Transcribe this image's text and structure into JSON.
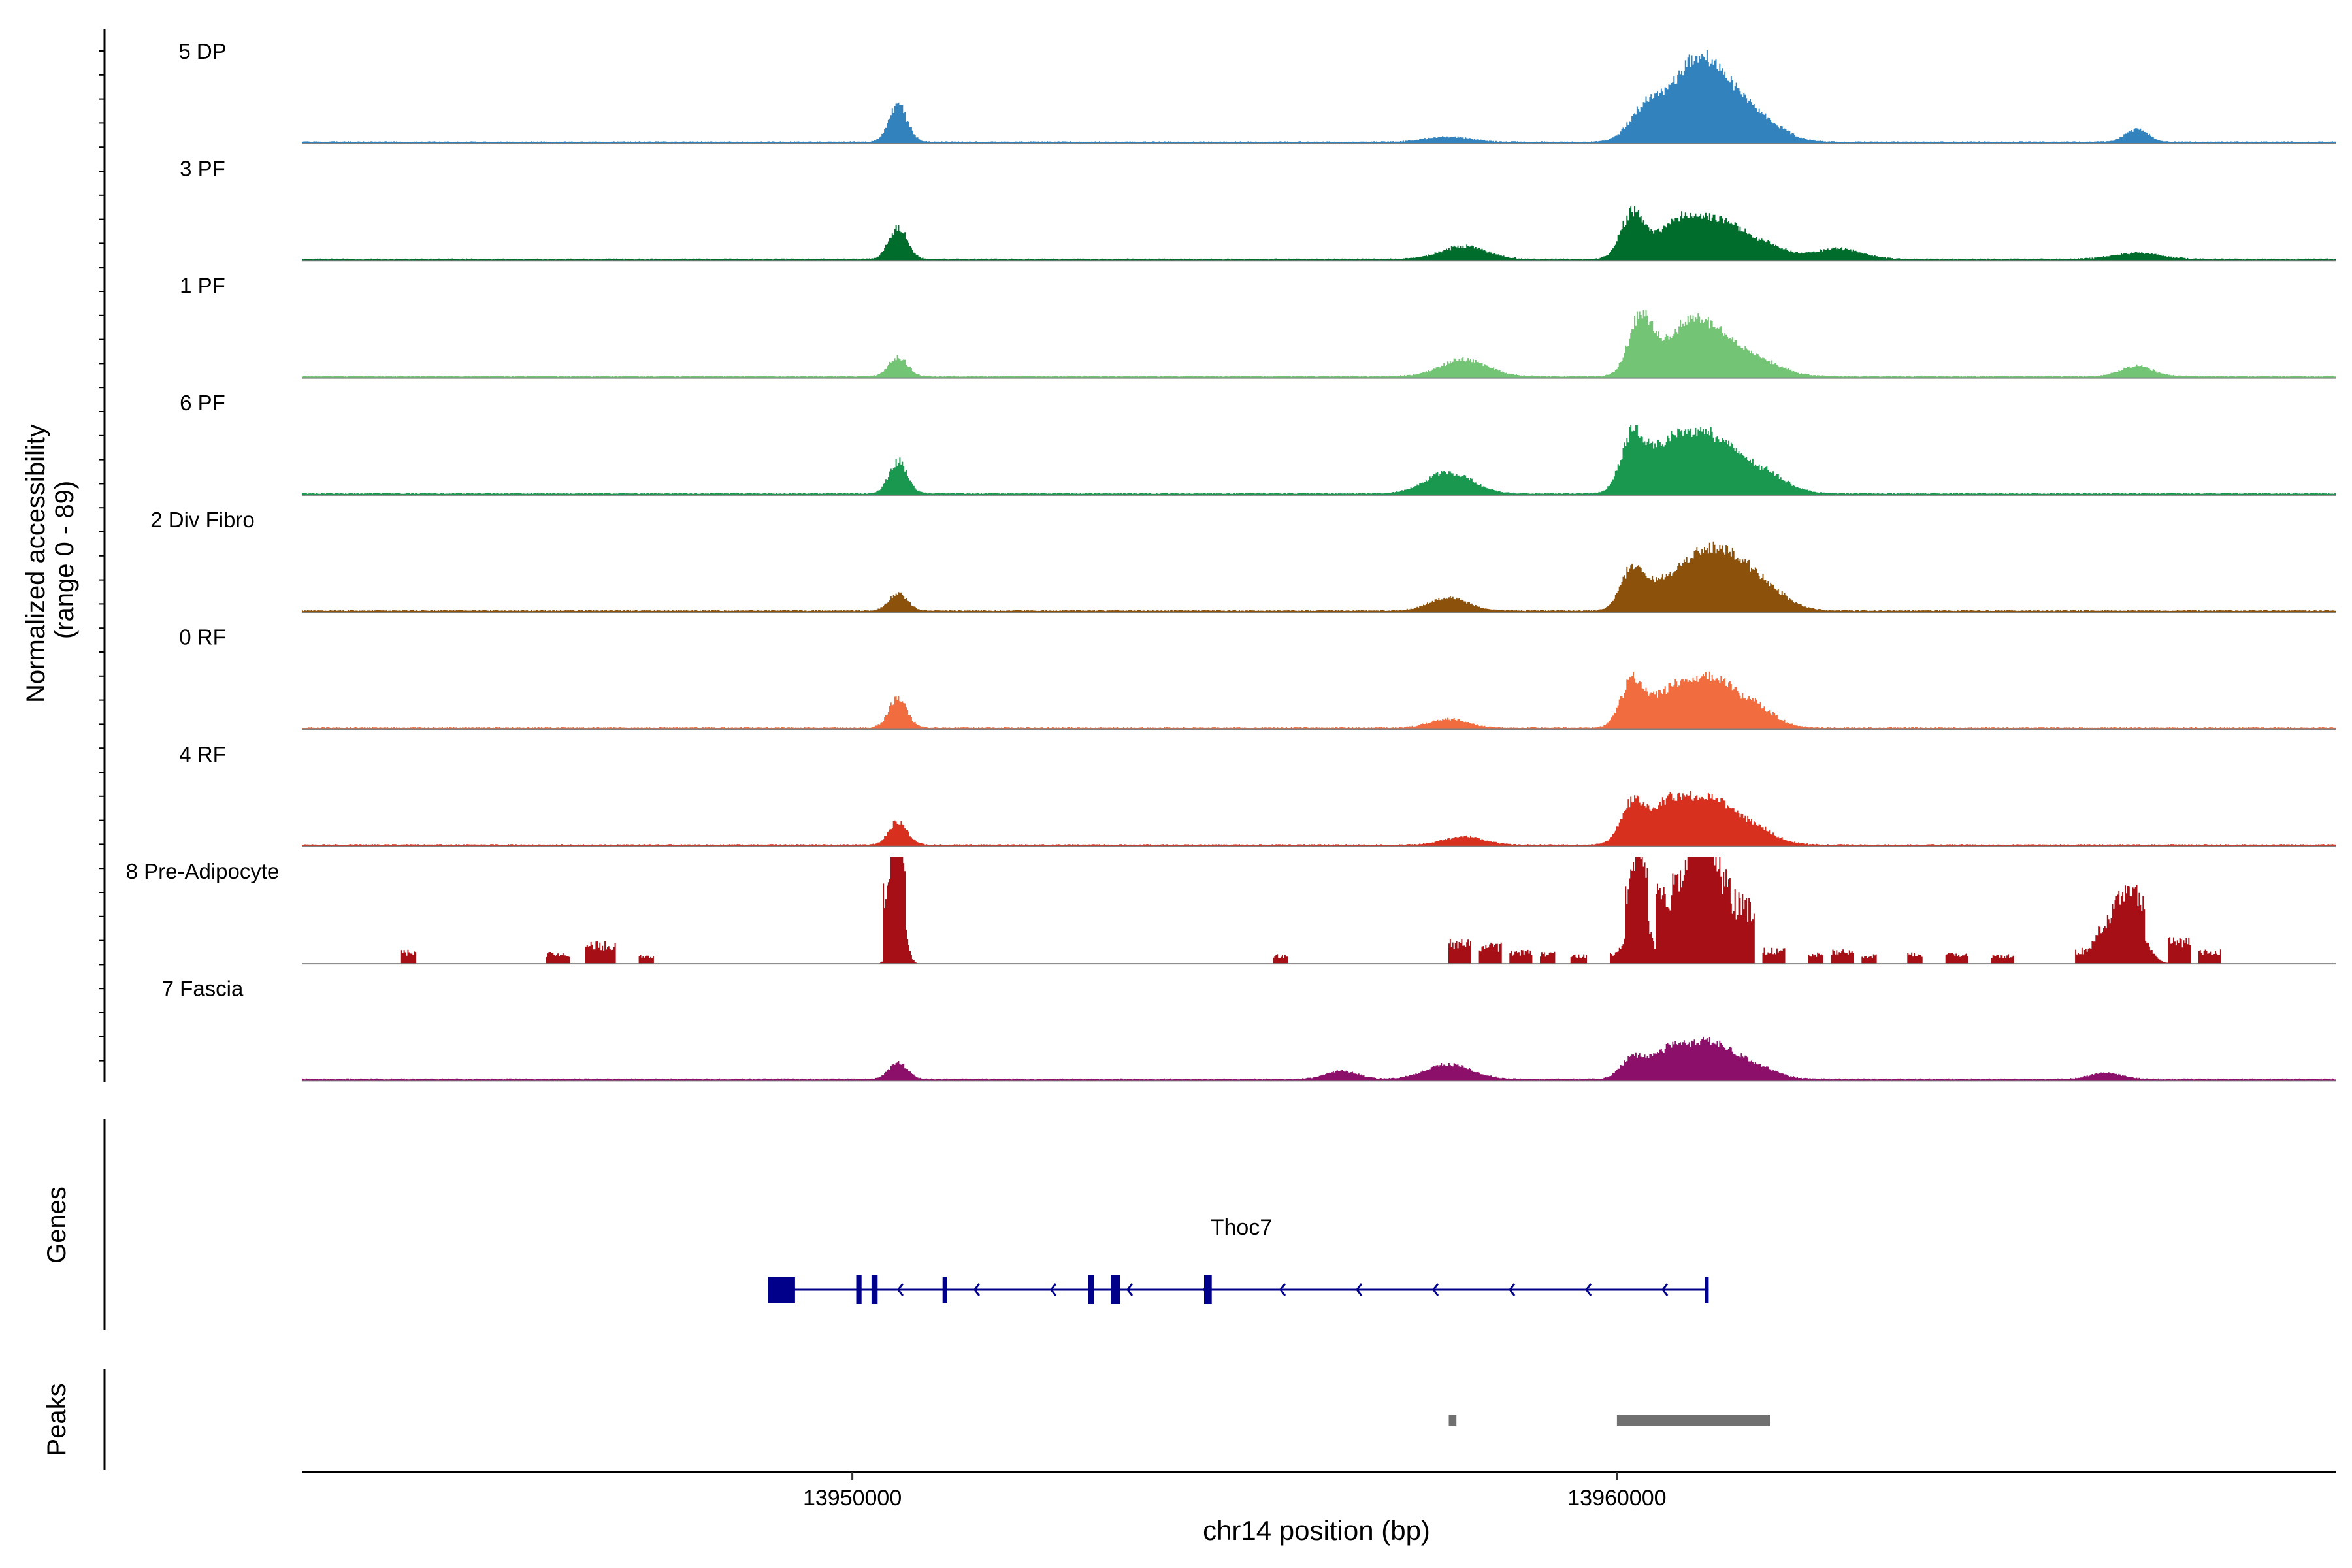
{
  "chart_data": {
    "type": "area",
    "title": "",
    "xlabel": "chr14 position (bp)",
    "ylabel_line1": "Normalized accessibility",
    "ylabel_line2": "(range 0 - 89)",
    "ylim": [
      0,
      89
    ],
    "xlim": [
      13942800,
      13969400
    ],
    "x_ticks": [
      13950000,
      13960000
    ],
    "x_tick_labels": [
      "13950000",
      "13960000"
    ],
    "tracks": [
      {
        "name": "5 DP",
        "color": "#3182bd",
        "regions": [
          [
            13942800,
            13969400,
            2
          ]
        ],
        "peaks": [
          [
            13950600,
            34,
            120
          ],
          [
            13957800,
            5,
            300
          ],
          [
            13960400,
            34,
            220
          ],
          [
            13960900,
            48,
            250
          ],
          [
            13961200,
            40,
            250
          ],
          [
            13961500,
            28,
            250
          ],
          [
            13961900,
            18,
            300
          ],
          [
            13966800,
            12,
            150
          ]
        ]
      },
      {
        "name": "3 PF",
        "color": "#006d2c",
        "regions": [
          [
            13942800,
            13969400,
            2
          ]
        ],
        "peaks": [
          [
            13950600,
            30,
            120
          ],
          [
            13958000,
            12,
            300
          ],
          [
            13960200,
            42,
            150
          ],
          [
            13960700,
            24,
            250
          ],
          [
            13961000,
            22,
            250
          ],
          [
            13961400,
            28,
            250
          ],
          [
            13961900,
            14,
            300
          ],
          [
            13962900,
            10,
            300
          ],
          [
            13966800,
            6,
            300
          ]
        ]
      },
      {
        "name": "1 PF",
        "color": "#74c476",
        "regions": [
          [
            13942800,
            13969400,
            2
          ]
        ],
        "peaks": [
          [
            13950600,
            18,
            120
          ],
          [
            13958000,
            16,
            300
          ],
          [
            13960300,
            52,
            150
          ],
          [
            13960700,
            26,
            250
          ],
          [
            13961100,
            42,
            250
          ],
          [
            13961500,
            18,
            250
          ],
          [
            13961900,
            12,
            300
          ],
          [
            13966800,
            10,
            200
          ]
        ]
      },
      {
        "name": "6 PF",
        "color": "#1a9850",
        "regions": [
          [
            13942800,
            13969400,
            2
          ]
        ],
        "peaks": [
          [
            13950600,
            30,
            120
          ],
          [
            13957800,
            20,
            300
          ],
          [
            13960200,
            50,
            150
          ],
          [
            13960600,
            36,
            250
          ],
          [
            13961000,
            40,
            250
          ],
          [
            13961400,
            34,
            250
          ],
          [
            13961900,
            20,
            300
          ]
        ]
      },
      {
        "name": "2 Div Fibro",
        "color": "#8c510a",
        "regions": [
          [
            13942800,
            13969400,
            2
          ]
        ],
        "peaks": [
          [
            13950600,
            16,
            120
          ],
          [
            13957800,
            12,
            250
          ],
          [
            13960200,
            36,
            150
          ],
          [
            13960600,
            24,
            250
          ],
          [
            13961100,
            44,
            250
          ],
          [
            13961500,
            34,
            250
          ],
          [
            13961900,
            22,
            300
          ]
        ]
      },
      {
        "name": "0 RF",
        "color": "#f16d3f",
        "regions": [
          [
            13942800,
            13969400,
            2
          ]
        ],
        "peaks": [
          [
            13950600,
            28,
            120
          ],
          [
            13957800,
            8,
            250
          ],
          [
            13960200,
            42,
            150
          ],
          [
            13960700,
            34,
            250
          ],
          [
            13961200,
            38,
            250
          ],
          [
            13961700,
            24,
            300
          ]
        ]
      },
      {
        "name": "4 RF",
        "color": "#d7301f",
        "regions": [
          [
            13942800,
            13969400,
            2
          ]
        ],
        "peaks": [
          [
            13950600,
            22,
            120
          ],
          [
            13958000,
            8,
            250
          ],
          [
            13960200,
            38,
            150
          ],
          [
            13960700,
            40,
            250
          ],
          [
            13961200,
            36,
            250
          ],
          [
            13961700,
            20,
            300
          ]
        ]
      },
      {
        "name": "8 Pre-Adipocyte",
        "color": "#a50f15",
        "regions": [
          [
            13944100,
            13944300,
            12
          ],
          [
            13946000,
            13946300,
            10
          ],
          [
            13946500,
            13946900,
            20
          ],
          [
            13947200,
            13947400,
            8
          ],
          [
            13950400,
            13950700,
            70
          ],
          [
            13955500,
            13955700,
            8
          ],
          [
            13957800,
            13958100,
            22
          ],
          [
            13958200,
            13958500,
            18
          ],
          [
            13958600,
            13958900,
            12
          ],
          [
            13959000,
            13959200,
            10
          ],
          [
            13959400,
            13959600,
            8
          ],
          [
            13959900,
            13960200,
            10
          ],
          [
            13960100,
            13960400,
            52
          ],
          [
            13960500,
            13961500,
            70
          ],
          [
            13961500,
            13961800,
            60
          ],
          [
            13961900,
            13962200,
            14
          ],
          [
            13962500,
            13962700,
            10
          ],
          [
            13962800,
            13963100,
            12
          ],
          [
            13963200,
            13963400,
            8
          ],
          [
            13963800,
            13964000,
            10
          ],
          [
            13964300,
            13964600,
            10
          ],
          [
            13964900,
            13965200,
            8
          ],
          [
            13966000,
            13966200,
            14
          ],
          [
            13966200,
            13966900,
            30
          ],
          [
            13967200,
            13967500,
            22
          ],
          [
            13967600,
            13967900,
            12
          ]
        ],
        "peaks": [
          [
            13961100,
            90,
            160
          ],
          [
            13950600,
            78,
            80
          ],
          [
            13966700,
            46,
            180
          ],
          [
            13960300,
            58,
            120
          ]
        ]
      },
      {
        "name": "7 Fascia",
        "color": "#8c0f6a",
        "regions": [
          [
            13942800,
            13969400,
            2
          ]
        ],
        "peaks": [
          [
            13950600,
            16,
            120
          ],
          [
            13956400,
            8,
            200
          ],
          [
            13957800,
            14,
            300
          ],
          [
            13960200,
            18,
            150
          ],
          [
            13960700,
            28,
            250
          ],
          [
            13961200,
            28,
            250
          ],
          [
            13961700,
            16,
            300
          ],
          [
            13966400,
            6,
            200
          ]
        ]
      }
    ],
    "gene": {
      "name": "Thoc7",
      "strand": "-",
      "start": 13948900,
      "end": 13961200,
      "exons": [
        [
          13948900,
          13949250
        ],
        [
          13950050,
          13950120
        ],
        [
          13950250,
          13950330
        ],
        [
          13951180,
          13951240
        ],
        [
          13953080,
          13953160
        ],
        [
          13953380,
          13953500
        ],
        [
          13954600,
          13954700
        ],
        [
          13961150,
          13961200
        ]
      ]
    },
    "peaks_track": [
      [
        13957800,
        13957900
      ],
      [
        13960000,
        13962000
      ]
    ],
    "panel_labels": {
      "genes": "Genes",
      "peaks": "Peaks"
    }
  }
}
